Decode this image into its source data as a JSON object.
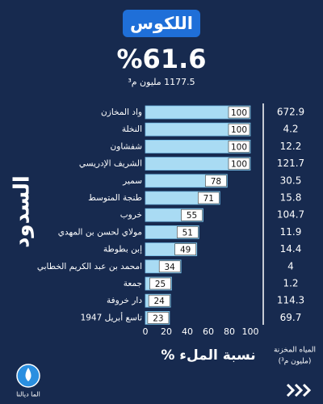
{
  "chart_data": {
    "type": "bar",
    "orientation": "horizontal",
    "title": "اللكوس",
    "headline": "%61.6",
    "subtitle": "1177.5 مليون م³",
    "y_label": "السدود",
    "x_label": "نسبة الملء %",
    "categories": [
      "واد المخازن",
      "النخلة",
      "شفشاون",
      "الشريف الإدريسي",
      "سمير",
      "طنجة المتوسط",
      "خروب",
      "مولاي لحسن بن المهدي",
      "إبن بطوطة",
      "امحمد بن عبد الكريم الخطابي",
      "جمعة",
      "دار خروفة",
      "تاسع أبريل 1947"
    ],
    "values": [
      100,
      100,
      100,
      100,
      78,
      71,
      55,
      51,
      49,
      34,
      25,
      24,
      23
    ],
    "color": "#a9dbf3",
    "xlim": [
      0,
      100
    ],
    "xticks": [
      0,
      20,
      40,
      60,
      80,
      100
    ],
    "stored_title": [
      "المياه المخزنة",
      "(مليون م³)"
    ],
    "stored_values": [
      672.9,
      4.2,
      12.2,
      121.7,
      30.5,
      15.8,
      104.7,
      11.9,
      14.4,
      4,
      1.2,
      114.3,
      69.7
    ],
    "logo_text": "الما ديالنا"
  }
}
